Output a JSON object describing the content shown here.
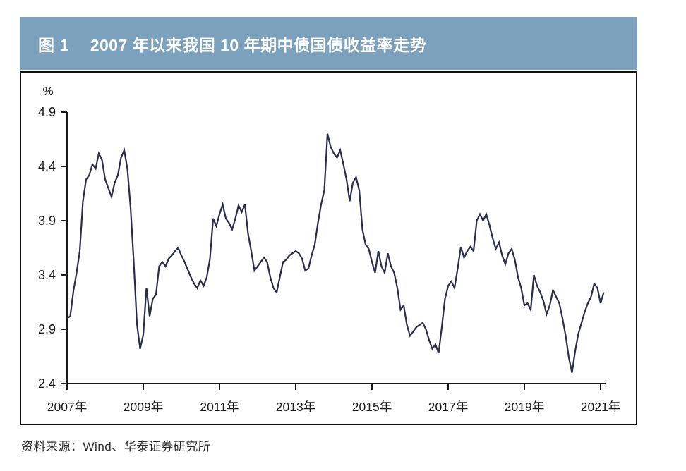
{
  "figure": {
    "title_prefix": "图 1",
    "title_main": "2007 年以来我国 10 年期中债国债收益率走势",
    "source": "资料来源：Wind、华泰证券研究所"
  },
  "colors": {
    "title_bar_bg": "#7ca1bc",
    "title_text": "#ffffff",
    "line": "#2b2b4e",
    "axis": "#1a1a1a",
    "chart_border": "#111111"
  },
  "chart_data": {
    "type": "line",
    "title": "2007 年以来我国 10 年期中债国债收益率走势",
    "unit_label": "%",
    "xlabel": "",
    "ylabel": "%",
    "ylim": [
      2.4,
      4.9
    ],
    "y_ticks": [
      4.9,
      4.4,
      3.9,
      3.4,
      2.9,
      2.4
    ],
    "x_tick_years": [
      2007,
      2009,
      2011,
      2013,
      2015,
      2017,
      2019,
      2021
    ],
    "x_tick_labels": [
      "2007年",
      "2009年",
      "2011年",
      "2013年",
      "2015年",
      "2017年",
      "2019年",
      "2021年"
    ],
    "grid": false,
    "legend": "none",
    "series": [
      {
        "name": "10年期中债国债收益率",
        "start_year": 2007,
        "start_month": 1,
        "interval_months": 1,
        "values": [
          3.0,
          3.02,
          3.25,
          3.42,
          3.62,
          4.08,
          4.28,
          4.32,
          4.42,
          4.38,
          4.52,
          4.46,
          4.28,
          4.2,
          4.12,
          4.25,
          4.32,
          4.48,
          4.55,
          4.38,
          4.02,
          3.52,
          2.95,
          2.72,
          2.85,
          3.28,
          3.02,
          3.18,
          3.22,
          3.48,
          3.52,
          3.48,
          3.55,
          3.58,
          3.62,
          3.65,
          3.58,
          3.52,
          3.45,
          3.38,
          3.32,
          3.28,
          3.35,
          3.3,
          3.38,
          3.55,
          3.92,
          3.85,
          3.96,
          4.05,
          3.92,
          3.88,
          3.82,
          3.92,
          4.04,
          3.98,
          4.05,
          3.78,
          3.62,
          3.44,
          3.48,
          3.52,
          3.56,
          3.52,
          3.38,
          3.28,
          3.24,
          3.38,
          3.52,
          3.54,
          3.58,
          3.6,
          3.62,
          3.6,
          3.55,
          3.44,
          3.46,
          3.58,
          3.68,
          3.88,
          4.05,
          4.18,
          4.7,
          4.58,
          4.52,
          4.48,
          4.55,
          4.42,
          4.28,
          4.08,
          4.25,
          4.3,
          4.18,
          3.82,
          3.68,
          3.64,
          3.52,
          3.42,
          3.62,
          3.48,
          3.42,
          3.6,
          3.48,
          3.42,
          3.28,
          3.08,
          3.12,
          2.94,
          2.84,
          2.88,
          2.92,
          2.94,
          2.96,
          2.9,
          2.8,
          2.72,
          2.76,
          2.68,
          2.92,
          3.18,
          3.3,
          3.34,
          3.28,
          3.46,
          3.66,
          3.56,
          3.62,
          3.66,
          3.62,
          3.9,
          3.96,
          3.9,
          3.96,
          3.86,
          3.74,
          3.64,
          3.7,
          3.58,
          3.5,
          3.6,
          3.64,
          3.54,
          3.38,
          3.28,
          3.12,
          3.14,
          3.08,
          3.4,
          3.3,
          3.24,
          3.16,
          3.04,
          3.12,
          3.26,
          3.2,
          3.14,
          3.0,
          2.84,
          2.64,
          2.5,
          2.7,
          2.86,
          2.96,
          3.06,
          3.14,
          3.2,
          3.32,
          3.28,
          3.14,
          3.24
        ]
      }
    ]
  }
}
